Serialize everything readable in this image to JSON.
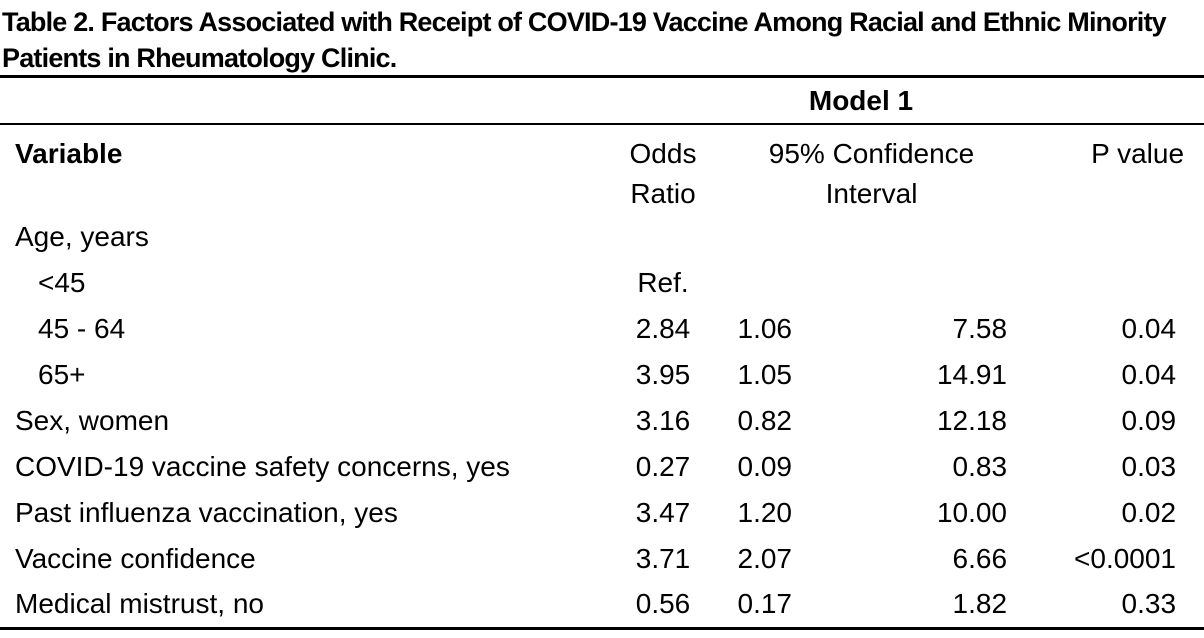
{
  "title": "Table 2. Factors Associated with Receipt of COVID-19 Vaccine Among Racial and Ethnic Minority Patients in Rheumatology Clinic.",
  "model_header": "Model 1",
  "columns": {
    "variable": "Variable",
    "odds_ratio_lines": [
      "Odds",
      "Ratio"
    ],
    "ci_lines": [
      "95% Confidence",
      "Interval"
    ],
    "p_value": "P value"
  },
  "rows": [
    {
      "label": "Age, years",
      "or": "",
      "ci_low": "",
      "ci_high": "",
      "p": ""
    },
    {
      "label": "<45",
      "or": "Ref.",
      "ci_low": "",
      "ci_high": "",
      "p": ""
    },
    {
      "label": "45 - 64",
      "or": "2.84",
      "ci_low": "1.06",
      "ci_high": "7.58",
      "p": "0.04"
    },
    {
      "label": "65+",
      "or": "3.95",
      "ci_low": "1.05",
      "ci_high": "14.91",
      "p": "0.04"
    },
    {
      "label": "Sex, women",
      "or": "3.16",
      "ci_low": "0.82",
      "ci_high": "12.18",
      "p": "0.09"
    },
    {
      "label": "COVID-19 vaccine safety concerns, yes",
      "or": "0.27",
      "ci_low": "0.09",
      "ci_high": "0.83",
      "p": "0.03"
    },
    {
      "label": "Past influenza vaccination, yes",
      "or": "3.47",
      "ci_low": "1.20",
      "ci_high": "10.00",
      "p": "0.02"
    },
    {
      "label": "Vaccine confidence",
      "or": "3.71",
      "ci_low": "2.07",
      "ci_high": "6.66",
      "p": "<0.0001"
    },
    {
      "label": "Medical mistrust, no",
      "or": "0.56",
      "ci_low": "0.17",
      "ci_high": "1.82",
      "p": "0.33"
    }
  ]
}
